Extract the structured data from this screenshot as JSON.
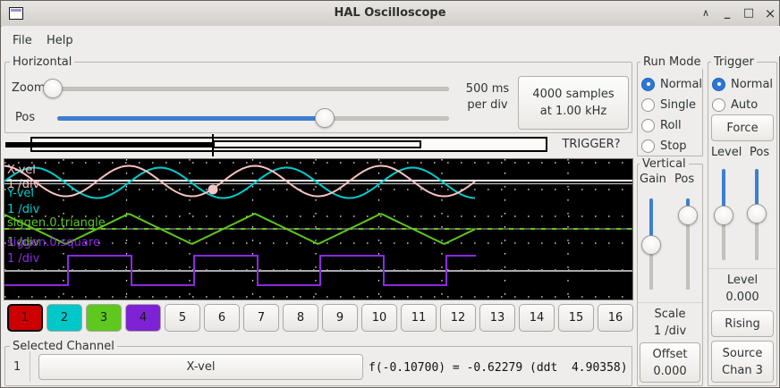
{
  "window": {
    "title": "HAL Oscilloscope",
    "controls": {
      "shade": "∧",
      "minimize": "_",
      "maximize": "□",
      "close": "×"
    }
  },
  "menu": {
    "items": [
      {
        "label": "File"
      },
      {
        "label": "Help"
      }
    ]
  },
  "horizontal": {
    "group_label": "Horizontal",
    "zoom_label": "Zoom",
    "pos_label": "Pos",
    "rate_value": "500 ms",
    "rate_unit": "per div",
    "record_info_line1": "4000 samples",
    "record_info_line2": "at 1.00 kHz",
    "trigger_status": "TRIGGER?"
  },
  "scope": {
    "channels": [
      {
        "number": "1",
        "name": "X-vel",
        "scale": "1 /div",
        "color": "#f9c2c2",
        "waveform": "sine"
      },
      {
        "number": "2",
        "name": "Y-vel",
        "scale": "1 /div",
        "color": "#00cdcd",
        "waveform": "sine"
      },
      {
        "number": "3",
        "name": "siggen.0.triangle",
        "scale": "1 /div",
        "color": "#5ec81e",
        "waveform": "triangle"
      },
      {
        "number": "4",
        "name": "siggen.0.square",
        "scale": "1 /div",
        "color": "#8a2be2",
        "waveform": "square"
      }
    ],
    "marker_color": "#f2c8c4"
  },
  "channel_buttons": [
    {
      "label": "1",
      "color": "#cc0000",
      "selected": true
    },
    {
      "label": "2",
      "color": "#00c8c8"
    },
    {
      "label": "3",
      "color": "#5ec81e"
    },
    {
      "label": "4",
      "color": "#7e22d5"
    },
    {
      "label": "5"
    },
    {
      "label": "6"
    },
    {
      "label": "7"
    },
    {
      "label": "8"
    },
    {
      "label": "9"
    },
    {
      "label": "10"
    },
    {
      "label": "11"
    },
    {
      "label": "12"
    },
    {
      "label": "13"
    },
    {
      "label": "14"
    },
    {
      "label": "15"
    },
    {
      "label": "16"
    }
  ],
  "selected_channel": {
    "group_label": "Selected Channel",
    "number": "1",
    "source_button": "X-vel",
    "readout": "f(-0.10700) = -0.62279 (ddt  4.90358)"
  },
  "run_mode": {
    "group_label": "Run Mode",
    "options": [
      {
        "label": "Normal",
        "selected": true
      },
      {
        "label": "Single",
        "selected": false
      },
      {
        "label": "Roll",
        "selected": false
      },
      {
        "label": "Stop",
        "selected": false
      }
    ]
  },
  "vertical": {
    "group_label": "Vertical",
    "gain_label": "Gain",
    "pos_label": "Pos",
    "scale_label": "Scale",
    "scale_value": "1 /div",
    "offset_label": "Offset",
    "offset_value": "0.000"
  },
  "trigger": {
    "group_label": "Trigger",
    "options": [
      {
        "label": "Normal",
        "selected": true
      },
      {
        "label": "Auto",
        "selected": false
      }
    ],
    "force_label": "Force",
    "level_label": "Level",
    "pos_label": "Pos",
    "level_caption": "Level",
    "level_value": "0.000",
    "edge_button": "Rising",
    "source_button_line1": "Source",
    "source_button_line2": "Chan 3"
  }
}
